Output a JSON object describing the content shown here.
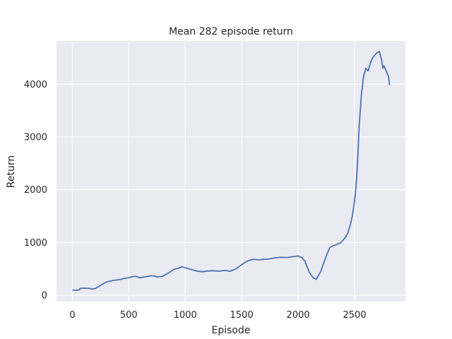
{
  "chart_data": {
    "type": "line",
    "title": "Mean 282 episode return",
    "xlabel": "Episode",
    "ylabel": "Return",
    "xlim": [
      -140,
      2950
    ],
    "ylim": [
      -120,
      4820
    ],
    "xticks": [
      0,
      500,
      1000,
      1500,
      2000,
      2500
    ],
    "yticks": [
      0,
      1000,
      2000,
      3000,
      4000
    ],
    "grid": true,
    "line_color": "#4c72b0",
    "series": [
      {
        "x": [
          0,
          30,
          60,
          70,
          100,
          150,
          170,
          200,
          230,
          260,
          300,
          330,
          360,
          400,
          430,
          460,
          500,
          530,
          560,
          600,
          620,
          650,
          700,
          730,
          760,
          800,
          850,
          900,
          950,
          970,
          1000,
          1050,
          1100,
          1150,
          1200,
          1250,
          1300,
          1350,
          1400,
          1450,
          1500,
          1550,
          1600,
          1650,
          1700,
          1750,
          1800,
          1850,
          1900,
          1950,
          2000,
          2030,
          2060,
          2100,
          2130,
          2160,
          2200,
          2250,
          2280,
          2300,
          2340,
          2380,
          2420,
          2440,
          2460,
          2480,
          2500,
          2510,
          2520,
          2530,
          2540,
          2550,
          2560,
          2580,
          2600,
          2620,
          2640,
          2660,
          2680,
          2700,
          2720,
          2740,
          2750,
          2760,
          2780,
          2800,
          2810
        ],
        "y": [
          100,
          95,
          100,
          130,
          135,
          130,
          120,
          125,
          160,
          200,
          250,
          265,
          280,
          290,
          300,
          320,
          330,
          350,
          360,
          330,
          340,
          350,
          370,
          360,
          345,
          360,
          420,
          490,
          520,
          540,
          520,
          490,
          460,
          445,
          460,
          465,
          455,
          470,
          455,
          500,
          580,
          650,
          680,
          670,
          680,
          690,
          710,
          720,
          715,
          730,
          745,
          720,
          650,
          430,
          340,
          300,
          450,
          750,
          900,
          930,
          960,
          1000,
          1100,
          1180,
          1320,
          1500,
          1800,
          2000,
          2300,
          2700,
          3200,
          3500,
          3800,
          4150,
          4300,
          4250,
          4400,
          4500,
          4550,
          4600,
          4620,
          4450,
          4300,
          4350,
          4250,
          4150,
          3980
        ]
      }
    ]
  }
}
